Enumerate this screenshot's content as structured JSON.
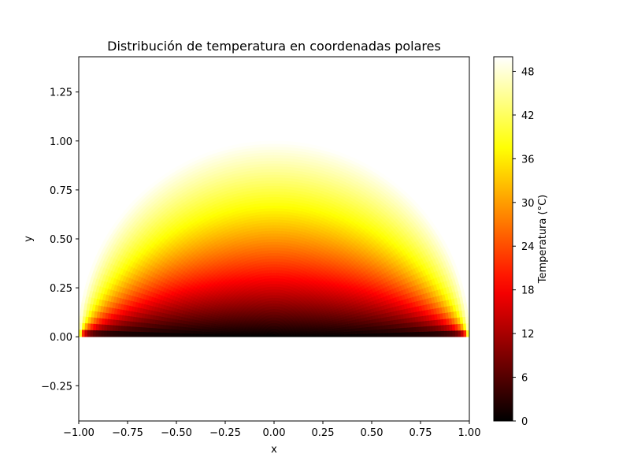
{
  "chart_data": {
    "type": "heatmap",
    "title": "Distribución de temperatura en coordenadas polares",
    "xlabel": "x",
    "ylabel": "y",
    "xlim": [
      -1.0,
      1.0
    ],
    "ylim": [
      -0.43,
      1.43
    ],
    "x_ticks": [
      "−1.00",
      "−0.75",
      "−0.50",
      "−0.25",
      "0.00",
      "0.25",
      "0.50",
      "0.75",
      "1.00"
    ],
    "x_tick_values": [
      -1.0,
      -0.75,
      -0.5,
      -0.25,
      0.0,
      0.25,
      0.5,
      0.75,
      1.0
    ],
    "y_ticks": [
      "−0.25",
      "0.00",
      "0.25",
      "0.50",
      "0.75",
      "1.00",
      "1.25"
    ],
    "y_tick_values": [
      -0.25,
      0.0,
      0.25,
      0.5,
      0.75,
      1.0,
      1.25
    ],
    "domain": "upper half disk, radius 1",
    "temperature_boundary_arc": 50,
    "temperature_boundary_base": 0,
    "colormap": "hot",
    "colorbar": {
      "label": "Temperatura (°C)",
      "range": [
        0,
        50
      ],
      "ticks": [
        "0",
        "6",
        "12",
        "18",
        "24",
        "30",
        "36",
        "42",
        "48"
      ],
      "tick_values": [
        0,
        6,
        12,
        18,
        24,
        30,
        36,
        42,
        48
      ]
    },
    "grid": false
  }
}
